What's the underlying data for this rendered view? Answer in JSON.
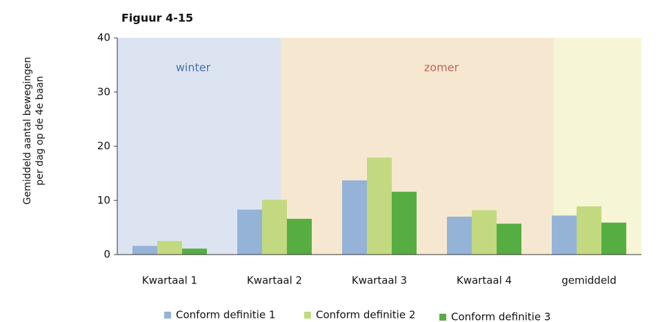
{
  "chart_data": {
    "type": "bar",
    "title": "Figuur 4-15",
    "y_label": [
      "Gemiddeld aantal bewegingen",
      "per dag op de 4e baan"
    ],
    "regions": [
      {
        "label": "winter",
        "color": "#dce4f2",
        "text_color": "#4a6fa5"
      },
      {
        "label": "zomer",
        "color": "#f6e8d0",
        "text_color": "#c0605a"
      },
      {
        "color": "#f6f6d6"
      }
    ],
    "categories": [
      "Kwartaal 1",
      "Kwartaal 2",
      "Kwartaal 3",
      "Kwartaal 4",
      "gemiddeld"
    ],
    "series": [
      {
        "name": "Conform definitie 1",
        "color": "#95b3d7",
        "values": [
          1.6,
          8.3,
          13.7,
          7.0,
          7.2
        ]
      },
      {
        "name": "Conform definitie 2",
        "color": "#c3d97f",
        "values": [
          2.5,
          10.1,
          17.9,
          8.2,
          8.9
        ]
      },
      {
        "name": "Conform definitie 3",
        "color": "#56ad42",
        "values": [
          1.1,
          6.6,
          11.6,
          5.7,
          5.9
        ]
      }
    ],
    "ylim": [
      0,
      40
    ],
    "yticks": [
      0,
      10,
      20,
      30,
      40
    ],
    "grid": false,
    "legend": "bottom"
  }
}
